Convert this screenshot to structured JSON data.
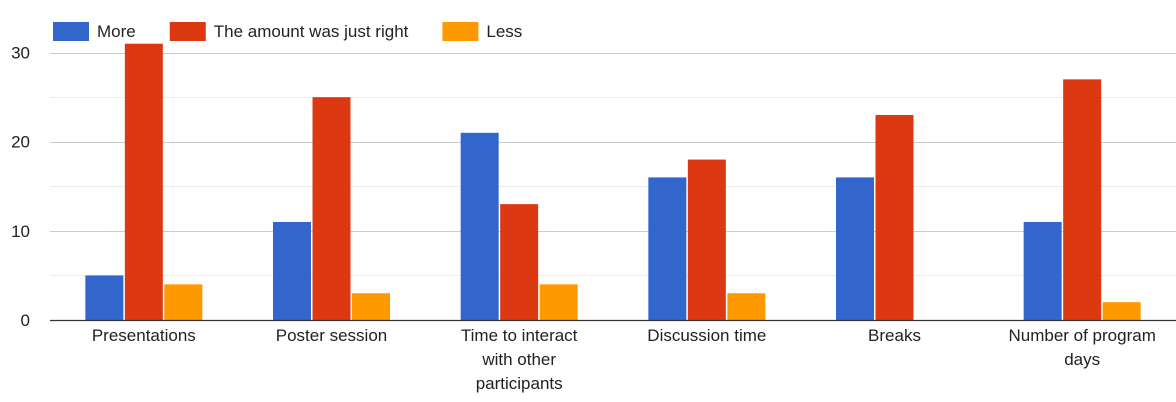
{
  "chart_data": {
    "type": "bar",
    "categories": [
      [
        "Presentations"
      ],
      [
        "Poster session"
      ],
      [
        "Time to interact",
        "with other",
        "participants"
      ],
      [
        "Discussion time"
      ],
      [
        "Breaks"
      ],
      [
        "Number of program",
        "days"
      ]
    ],
    "series": [
      {
        "name": "More",
        "color": "#3366cc",
        "values": [
          5,
          11,
          21,
          16,
          16,
          11
        ]
      },
      {
        "name": "The amount was just right",
        "color": "#dc3912",
        "values": [
          31,
          25,
          13,
          18,
          23,
          27
        ]
      },
      {
        "name": "Less",
        "color": "#ff9900",
        "values": [
          4,
          3,
          4,
          3,
          0,
          2
        ]
      }
    ],
    "y_ticks": [
      0,
      10,
      20,
      30
    ],
    "ylim": [
      0,
      30
    ],
    "minor_gridlines": true,
    "legend_position": "top-left"
  }
}
